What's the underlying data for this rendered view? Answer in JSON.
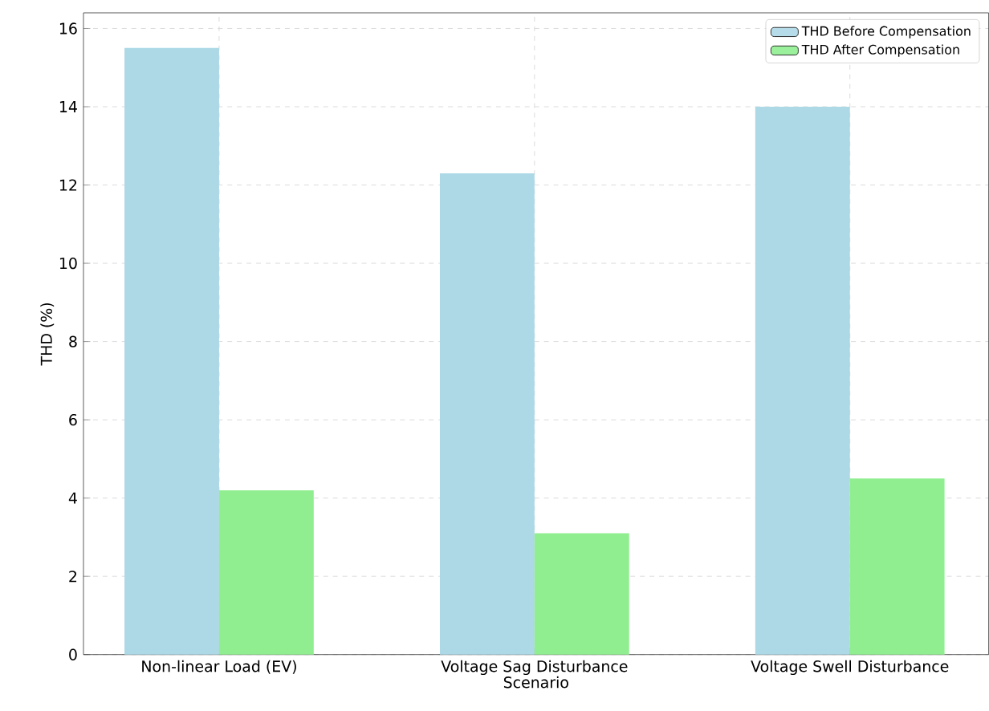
{
  "chart_data": {
    "type": "bar",
    "xlabel": "Scenario",
    "ylabel": "THD (%)",
    "categories": [
      "Non-linear Load (EV)",
      "Voltage Sag Disturbance",
      "Voltage Swell Disturbance"
    ],
    "series": [
      {
        "name": "THD Before Compensation",
        "color": "#add8e6",
        "values": [
          15.5,
          12.3,
          14.0
        ]
      },
      {
        "name": "THD After Compensation",
        "color": "#90ee90",
        "values": [
          4.2,
          3.1,
          4.5
        ]
      }
    ],
    "ylim": [
      0,
      16.4
    ],
    "yticks": [
      0,
      2,
      4,
      6,
      8,
      10,
      12,
      14,
      16
    ],
    "grid": true,
    "legend": "top right"
  }
}
